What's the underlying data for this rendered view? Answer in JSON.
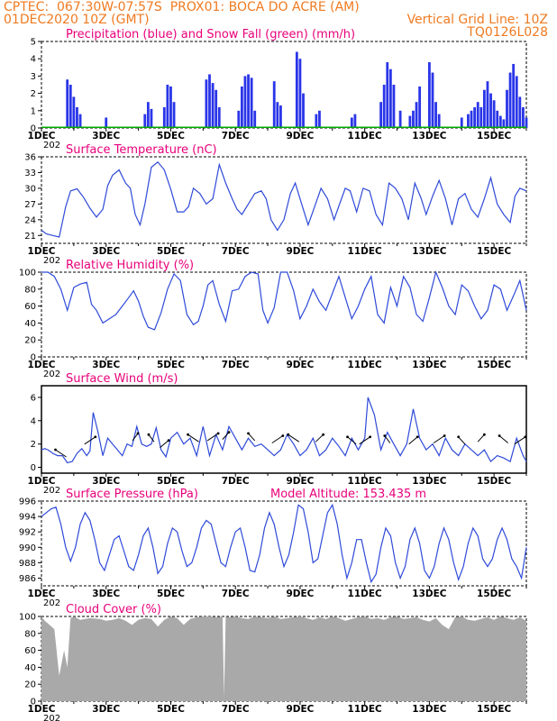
{
  "header": {
    "line1": "CPTEC:  067:30W-07:57S  PROX01: BOCA DO ACRE (AM)",
    "line2_left": "01DEC2020 10Z (GMT)",
    "line2_right": "Vertical Grid Line: 10Z",
    "line3_right": "TQ0126L028",
    "stub": "202"
  },
  "x_labels": [
    "1DEC",
    "3DEC",
    "5DEC",
    "7DEC",
    "9DEC",
    "11DEC",
    "13DEC",
    "15DEC"
  ],
  "chart_data": [
    {
      "type": "bar",
      "title": "Precipitation (blue) and Snow Fall (green) (mm/h)",
      "ylim": [
        0,
        5
      ],
      "yticks": [
        "0",
        "1",
        "2",
        "3",
        "4",
        "5"
      ],
      "series": [
        {
          "values": [
            [
              1.8,
              2.8
            ],
            [
              1.9,
              2.5
            ],
            [
              2.0,
              1.8
            ],
            [
              2.1,
              1.2
            ],
            [
              2.2,
              0.8
            ],
            [
              3.0,
              0.6
            ],
            [
              4.2,
              0.8
            ],
            [
              4.3,
              1.5
            ],
            [
              4.4,
              1.1
            ],
            [
              4.8,
              1.2
            ],
            [
              4.9,
              2.5
            ],
            [
              5.0,
              2.4
            ],
            [
              5.1,
              1.5
            ],
            [
              6.1,
              2.8
            ],
            [
              6.2,
              3.1
            ],
            [
              6.3,
              2.6
            ],
            [
              6.4,
              2.2
            ],
            [
              6.5,
              1.2
            ],
            [
              7.1,
              1.0
            ],
            [
              7.2,
              2.4
            ],
            [
              7.3,
              3.0
            ],
            [
              7.4,
              3.1
            ],
            [
              7.5,
              2.9
            ],
            [
              7.6,
              1.0
            ],
            [
              8.2,
              2.7
            ],
            [
              8.3,
              1.5
            ],
            [
              8.4,
              1.3
            ],
            [
              8.9,
              4.4
            ],
            [
              9.0,
              4.0
            ],
            [
              9.1,
              2.0
            ],
            [
              9.5,
              0.8
            ],
            [
              9.6,
              1.0
            ],
            [
              10.6,
              0.6
            ],
            [
              10.7,
              0.8
            ],
            [
              11.5,
              1.5
            ],
            [
              11.6,
              2.5
            ],
            [
              11.7,
              3.8
            ],
            [
              11.8,
              3.4
            ],
            [
              11.9,
              2.5
            ],
            [
              12.1,
              1.0
            ],
            [
              12.4,
              0.7
            ],
            [
              12.5,
              1.0
            ],
            [
              12.6,
              1.5
            ],
            [
              12.7,
              2.4
            ],
            [
              13.0,
              3.8
            ],
            [
              13.1,
              3.2
            ],
            [
              13.2,
              1.5
            ],
            [
              13.3,
              0.8
            ],
            [
              14.0,
              0.6
            ],
            [
              14.2,
              0.8
            ],
            [
              14.3,
              1.0
            ],
            [
              14.4,
              1.2
            ],
            [
              14.5,
              1.5
            ],
            [
              14.6,
              1.2
            ],
            [
              14.7,
              2.2
            ],
            [
              14.8,
              2.7
            ],
            [
              14.9,
              2.0
            ],
            [
              15.0,
              1.6
            ],
            [
              15.1,
              1.0
            ],
            [
              15.2,
              0.7
            ],
            [
              15.3,
              0.5
            ],
            [
              15.4,
              2.2
            ],
            [
              15.5,
              3.2
            ],
            [
              15.6,
              3.7
            ],
            [
              15.7,
              3.0
            ],
            [
              15.8,
              1.8
            ],
            [
              15.9,
              1.2
            ],
            [
              16.0,
              0.6
            ]
          ]
        }
      ]
    },
    {
      "type": "line",
      "title": "Surface Temperature (nC)",
      "ylim": [
        19.5,
        36
      ],
      "yticks": [
        "21",
        "24",
        "27",
        "30",
        "33",
        "36"
      ],
      "x": [
        1.0,
        1.15,
        1.35,
        1.55,
        1.75,
        1.9,
        2.1,
        2.3,
        2.5,
        2.7,
        2.9,
        3.05,
        3.2,
        3.4,
        3.6,
        3.75,
        3.9,
        4.05,
        4.2,
        4.4,
        4.6,
        4.8,
        5.0,
        5.2,
        5.4,
        5.55,
        5.7,
        5.9,
        6.1,
        6.3,
        6.5,
        6.7,
        6.9,
        7.05,
        7.2,
        7.4,
        7.6,
        7.8,
        7.95,
        8.1,
        8.3,
        8.5,
        8.7,
        8.85,
        9.05,
        9.25,
        9.45,
        9.65,
        9.85,
        10.05,
        10.25,
        10.4,
        10.55,
        10.75,
        10.95,
        11.15,
        11.35,
        11.55,
        11.75,
        11.95,
        12.15,
        12.35,
        12.55,
        12.75,
        12.9,
        13.1,
        13.3,
        13.5,
        13.7,
        13.9,
        14.1,
        14.3,
        14.5,
        14.7,
        14.9,
        15.1,
        15.3,
        15.5,
        15.65,
        15.8,
        16.0
      ],
      "values": [
        22.0,
        21.3,
        21.0,
        20.7,
        26.5,
        29.5,
        29.9,
        28.3,
        26.2,
        24.5,
        26.0,
        30.5,
        32.5,
        33.5,
        31.0,
        30.0,
        25.0,
        23.0,
        27.0,
        34.0,
        35.0,
        33.5,
        29.8,
        25.5,
        25.5,
        26.5,
        30.0,
        29.0,
        27.0,
        28.0,
        34.5,
        31.0,
        28.0,
        26.0,
        25.0,
        27.0,
        29.0,
        29.5,
        28.0,
        24.0,
        22.0,
        24.0,
        29.0,
        31.0,
        27.0,
        23.0,
        26.5,
        30.0,
        28.0,
        24.0,
        27.5,
        30.0,
        29.5,
        25.5,
        30.0,
        29.5,
        25.0,
        23.0,
        31.0,
        30.0,
        28.0,
        24.0,
        31.0,
        28.0,
        25.0,
        28.5,
        31.5,
        28.0,
        23.0,
        28.0,
        29.0,
        26.0,
        24.5,
        28.0,
        32.0,
        27.0,
        25.0,
        23.5,
        28.5,
        30.0,
        29.5
      ]
    },
    {
      "type": "line",
      "title": "Relative Humidity (%)",
      "ylim": [
        0,
        100
      ],
      "yticks": [
        "0",
        "20",
        "40",
        "60",
        "80",
        "100"
      ],
      "x": [
        1.0,
        1.2,
        1.4,
        1.6,
        1.8,
        2.0,
        2.2,
        2.4,
        2.55,
        2.7,
        2.9,
        3.1,
        3.3,
        3.5,
        3.7,
        3.85,
        4.0,
        4.15,
        4.3,
        4.5,
        4.7,
        4.9,
        5.1,
        5.3,
        5.5,
        5.7,
        5.85,
        6.0,
        6.15,
        6.3,
        6.5,
        6.7,
        6.9,
        7.1,
        7.3,
        7.5,
        7.7,
        7.85,
        8.0,
        8.2,
        8.4,
        8.6,
        8.8,
        9.0,
        9.2,
        9.4,
        9.6,
        9.8,
        10.0,
        10.2,
        10.4,
        10.6,
        10.8,
        11.0,
        11.2,
        11.4,
        11.6,
        11.8,
        12.0,
        12.2,
        12.4,
        12.6,
        12.8,
        13.0,
        13.2,
        13.4,
        13.6,
        13.8,
        14.0,
        14.2,
        14.4,
        14.6,
        14.8,
        15.0,
        15.2,
        15.4,
        15.6,
        15.8,
        16.0
      ],
      "values": [
        100,
        100,
        95,
        80,
        55,
        82,
        86,
        88,
        62,
        55,
        40,
        45,
        50,
        60,
        70,
        78,
        66,
        48,
        35,
        32,
        52,
        80,
        98,
        90,
        50,
        38,
        42,
        60,
        85,
        90,
        62,
        42,
        78,
        80,
        95,
        100,
        98,
        55,
        40,
        58,
        100,
        100,
        78,
        45,
        60,
        80,
        65,
        55,
        75,
        95,
        70,
        45,
        60,
        80,
        95,
        50,
        40,
        82,
        60,
        95,
        82,
        50,
        42,
        70,
        100,
        82,
        60,
        50,
        85,
        78,
        60,
        45,
        55,
        85,
        80,
        55,
        72,
        90,
        55
      ]
    },
    {
      "type": "line",
      "title": "Surface Wind (m/s)",
      "ylim": [
        -0.5,
        7
      ],
      "yticks": [
        "0",
        "2",
        "4",
        "6"
      ],
      "x": [
        1.0,
        1.1,
        1.2,
        1.35,
        1.5,
        1.65,
        1.8,
        1.95,
        2.1,
        2.25,
        2.4,
        2.5,
        2.6,
        2.75,
        2.9,
        3.05,
        3.2,
        3.35,
        3.5,
        3.65,
        3.8,
        3.95,
        4.1,
        4.25,
        4.4,
        4.55,
        4.7,
        4.85,
        5.0,
        5.2,
        5.4,
        5.6,
        5.8,
        6.0,
        6.2,
        6.4,
        6.6,
        6.8,
        7.0,
        7.2,
        7.4,
        7.6,
        7.8,
        8.0,
        8.2,
        8.4,
        8.6,
        8.8,
        9.0,
        9.2,
        9.4,
        9.6,
        9.8,
        10.0,
        10.2,
        10.4,
        10.6,
        10.8,
        11.0,
        11.1,
        11.3,
        11.5,
        11.7,
        11.9,
        12.1,
        12.3,
        12.5,
        12.7,
        12.9,
        13.1,
        13.3,
        13.5,
        13.7,
        13.9,
        14.1,
        14.3,
        14.5,
        14.7,
        14.9,
        15.1,
        15.3,
        15.5,
        15.7,
        15.9,
        16.0
      ],
      "values": [
        1.5,
        1.6,
        1.5,
        1.2,
        1.0,
        1.0,
        0.4,
        0.5,
        1.2,
        1.6,
        1.0,
        1.4,
        4.7,
        3.0,
        1.0,
        2.5,
        2.0,
        1.5,
        1.0,
        2.0,
        1.8,
        3.5,
        2.0,
        1.8,
        2.0,
        3.4,
        1.5,
        0.9,
        2.5,
        3.0,
        2.0,
        2.5,
        1.0,
        3.5,
        1.0,
        2.8,
        1.5,
        3.5,
        2.5,
        1.5,
        2.5,
        1.8,
        2.0,
        1.5,
        1.0,
        1.5,
        2.8,
        2.0,
        1.0,
        1.5,
        2.5,
        1.0,
        1.5,
        2.5,
        1.8,
        1.0,
        2.5,
        1.5,
        2.5,
        6.0,
        4.5,
        1.5,
        3.0,
        2.0,
        1.0,
        2.0,
        5.0,
        2.5,
        1.5,
        2.0,
        1.0,
        2.5,
        1.5,
        1.0,
        2.0,
        1.5,
        1.0,
        1.5,
        0.5,
        1.0,
        0.8,
        0.5,
        2.5,
        1.0,
        0.5
      ]
    },
    {
      "type": "line",
      "title": "Surface Pressure (hPa)",
      "annotation": "Model Altitude: 153.435 m",
      "ylim": [
        985,
        996
      ],
      "yticks": [
        "986",
        "988",
        "990",
        "992",
        "994",
        "996"
      ],
      "x": [
        1.0,
        1.15,
        1.3,
        1.45,
        1.6,
        1.75,
        1.9,
        2.05,
        2.2,
        2.35,
        2.5,
        2.65,
        2.8,
        2.95,
        3.1,
        3.25,
        3.4,
        3.55,
        3.7,
        3.85,
        4.0,
        4.15,
        4.3,
        4.45,
        4.6,
        4.75,
        4.9,
        5.05,
        5.2,
        5.35,
        5.5,
        5.65,
        5.8,
        5.95,
        6.1,
        6.25,
        6.4,
        6.55,
        6.7,
        6.85,
        7.0,
        7.15,
        7.3,
        7.45,
        7.6,
        7.75,
        7.9,
        8.05,
        8.2,
        8.35,
        8.5,
        8.65,
        8.8,
        8.95,
        9.1,
        9.25,
        9.4,
        9.55,
        9.7,
        9.85,
        10.0,
        10.15,
        10.3,
        10.45,
        10.6,
        10.75,
        10.9,
        11.05,
        11.2,
        11.35,
        11.5,
        11.65,
        11.8,
        11.95,
        12.1,
        12.25,
        12.4,
        12.55,
        12.7,
        12.85,
        13.0,
        13.15,
        13.3,
        13.45,
        13.6,
        13.75,
        13.9,
        14.05,
        14.2,
        14.35,
        14.5,
        14.65,
        14.8,
        14.95,
        15.1,
        15.25,
        15.4,
        15.55,
        15.7,
        15.85,
        16.0
      ],
      "values": [
        994.0,
        994.5,
        995.0,
        995.2,
        993.0,
        990.0,
        988.2,
        990.0,
        993.0,
        994.5,
        993.5,
        991.0,
        988.0,
        987.0,
        989.0,
        991.0,
        991.5,
        989.5,
        987.5,
        987.0,
        989.0,
        991.5,
        992.5,
        990.0,
        986.6,
        987.5,
        990.5,
        992.5,
        992.0,
        989.5,
        987.5,
        988.0,
        990.0,
        992.5,
        993.5,
        993.0,
        990.5,
        988.0,
        987.5,
        990.0,
        992.0,
        992.5,
        990.0,
        987.0,
        986.8,
        989.0,
        992.5,
        994.5,
        993.0,
        990.0,
        987.5,
        989.0,
        992.0,
        995.5,
        995.0,
        992.0,
        988.0,
        988.5,
        991.5,
        994.5,
        995.5,
        993.0,
        989.0,
        986.0,
        988.0,
        991.0,
        991.0,
        988.0,
        985.5,
        986.5,
        990.0,
        992.5,
        991.5,
        988.0,
        986.0,
        987.5,
        991.0,
        992.5,
        990.5,
        987.0,
        986.0,
        987.5,
        990.5,
        992.5,
        991.0,
        988.0,
        985.8,
        987.5,
        990.5,
        992.5,
        991.5,
        988.5,
        987.5,
        988.5,
        991.0,
        992.5,
        991.0,
        988.5,
        987.5,
        986.0,
        990.0
      ]
    },
    {
      "type": "area",
      "title": "Cloud Cover (%)",
      "ylim": [
        0,
        100
      ],
      "yticks": [
        "0",
        "20",
        "40",
        "60",
        "80",
        "100"
      ],
      "x": [
        1.0,
        1.1,
        1.25,
        1.4,
        1.55,
        1.7,
        1.8,
        1.9,
        2.0,
        2.2,
        2.5,
        2.8,
        3.0,
        3.2,
        3.4,
        3.6,
        3.8,
        4.0,
        4.2,
        4.4,
        4.6,
        4.8,
        5.0,
        5.2,
        5.4,
        5.6,
        5.8,
        6.0,
        6.2,
        6.4,
        6.6,
        6.65,
        6.7,
        6.8,
        7.0,
        7.2,
        7.4,
        7.6,
        7.8,
        8.0,
        8.2,
        8.4,
        8.6,
        8.8,
        9.0,
        9.2,
        9.4,
        9.6,
        9.8,
        10.0,
        10.2,
        10.4,
        10.6,
        10.8,
        11.0,
        11.2,
        11.4,
        11.6,
        11.8,
        12.0,
        12.2,
        12.4,
        12.6,
        12.8,
        13.0,
        13.2,
        13.4,
        13.6,
        13.8,
        14.0,
        14.2,
        14.4,
        14.6,
        14.8,
        15.0,
        15.2,
        15.4,
        15.6,
        15.8,
        16.0
      ],
      "values": [
        100,
        95,
        90,
        85,
        30,
        60,
        40,
        98,
        100,
        96,
        98,
        97,
        95,
        96,
        98,
        95,
        90,
        96,
        98,
        97,
        88,
        96,
        100,
        98,
        90,
        97,
        99,
        100,
        100,
        99,
        100,
        5,
        100,
        99,
        100,
        98,
        97,
        100,
        99,
        98,
        100,
        97,
        98,
        99,
        100,
        98,
        96,
        99,
        97,
        100,
        98,
        95,
        97,
        99,
        100,
        97,
        98,
        96,
        99,
        100,
        97,
        98,
        99,
        96,
        94,
        98,
        90,
        85,
        99,
        100,
        96,
        95,
        97,
        99,
        96,
        100,
        98,
        96,
        99,
        95
      ]
    }
  ]
}
